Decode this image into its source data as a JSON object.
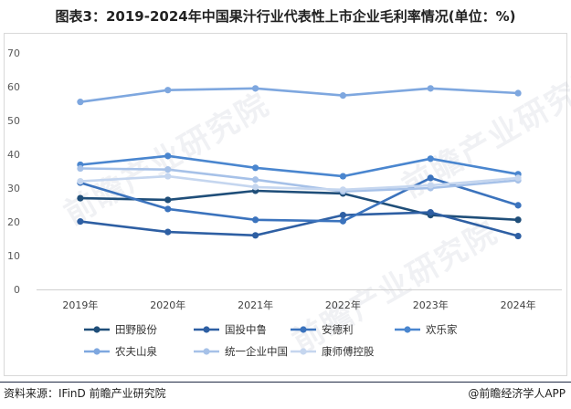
{
  "title": "图表3：2019-2024年中国果汁行业代表性上市企业毛利率情况(单位：%)",
  "source": "资料来源：IFinD 前瞻产业研究院",
  "brand": "@前瞻经济学人APP",
  "watermark": "前瞻产业研究院",
  "chart_data": {
    "type": "line",
    "title": "2019-2024年中国果汁行业代表性上市企业毛利率情况(单位：%)",
    "xlabel": "",
    "ylabel": "",
    "categories": [
      "2019年",
      "2020年",
      "2021年",
      "2022年",
      "2023年",
      "2024年"
    ],
    "ylim": [
      0,
      70
    ],
    "yticks": [
      0,
      10,
      20,
      30,
      40,
      50,
      60,
      70
    ],
    "legend_position": "bottom",
    "series": [
      {
        "name": "田野股份",
        "color": "#1f4e79",
        "values": [
          27.0,
          26.5,
          29.2,
          28.4,
          22.0,
          20.6
        ]
      },
      {
        "name": "国投中鲁",
        "color": "#2e5fa3",
        "values": [
          20.1,
          17.0,
          16.0,
          22.0,
          22.8,
          15.8
        ]
      },
      {
        "name": "安德利",
        "color": "#3b73bd",
        "values": [
          31.6,
          23.8,
          20.6,
          20.2,
          33.0,
          24.9
        ]
      },
      {
        "name": "欢乐家",
        "color": "#4a86cf",
        "values": [
          36.9,
          39.5,
          36.0,
          33.5,
          38.7,
          34.1
        ]
      },
      {
        "name": "农夫山泉",
        "color": "#7ea7df",
        "values": [
          55.5,
          59.0,
          59.5,
          57.4,
          59.5,
          58.1
        ]
      },
      {
        "name": "统一企业中国",
        "color": "#a6c1e8",
        "values": [
          35.8,
          35.5,
          32.5,
          29.0,
          30.0,
          32.3
        ]
      },
      {
        "name": "康师傅控股",
        "color": "#c5d6ef",
        "values": [
          32.0,
          33.5,
          30.3,
          29.5,
          30.8,
          33.0
        ]
      }
    ]
  }
}
